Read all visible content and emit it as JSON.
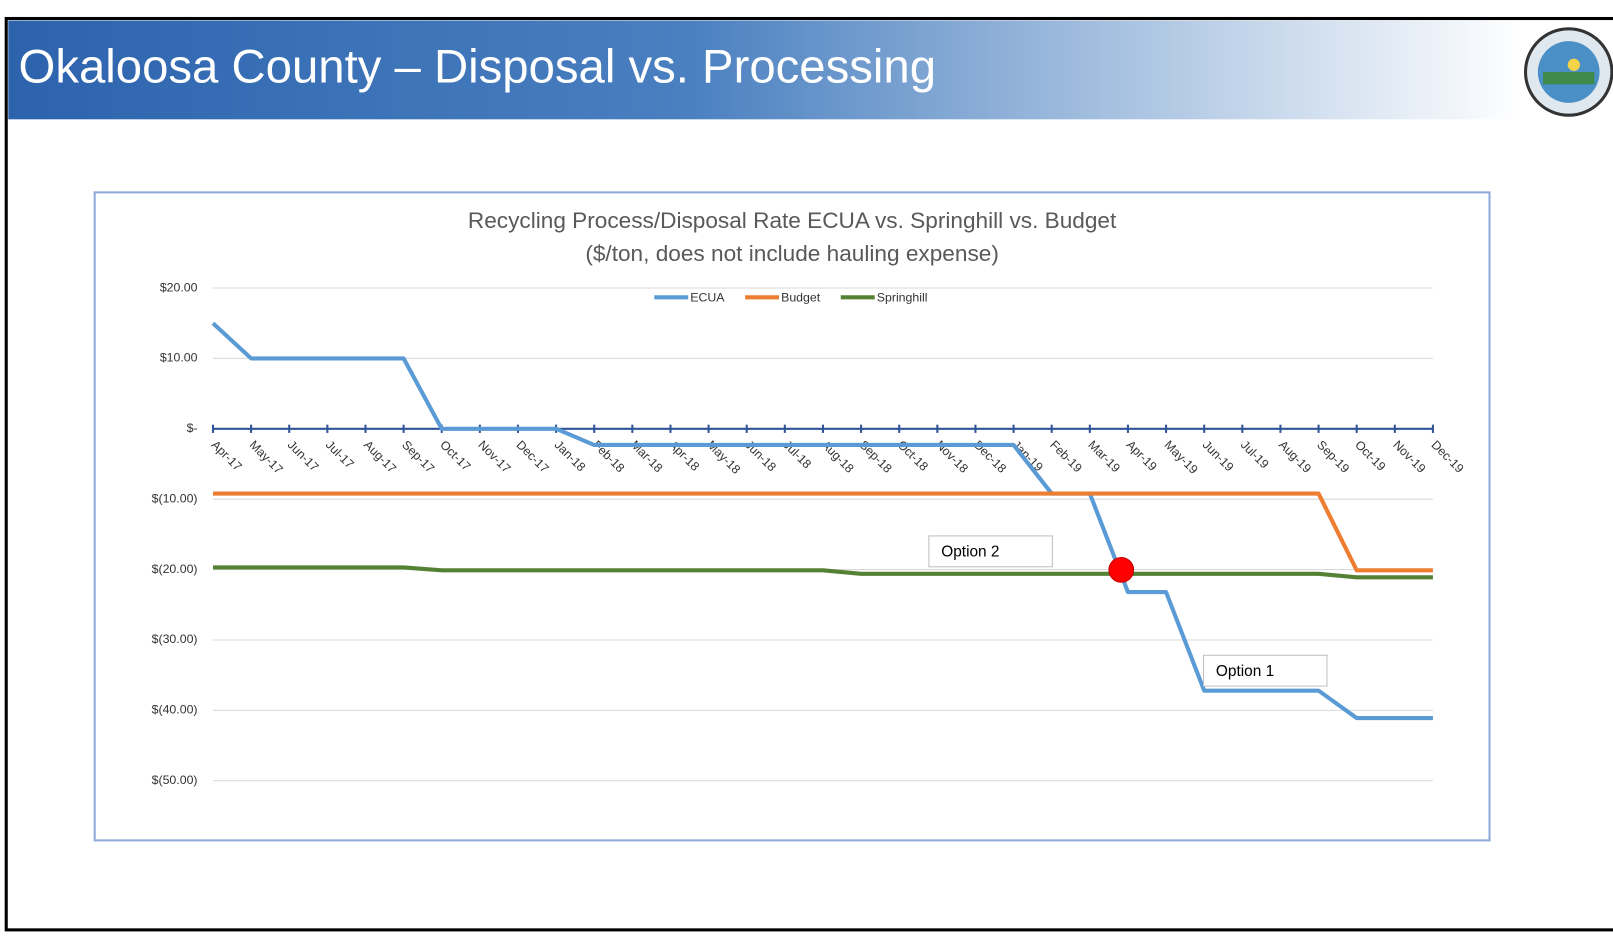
{
  "header": {
    "title": "Okaloosa County – Disposal vs. Processing"
  },
  "chart_data": {
    "type": "line",
    "title": "Recycling Process/Disposal Rate ECUA vs. Springhill vs. Budget",
    "subtitle": "($/ton, does not include hauling expense)",
    "categories": [
      "Apr-17",
      "May-17",
      "Jun-17",
      "Jul-17",
      "Aug-17",
      "Sep-17",
      "Oct-17",
      "Nov-17",
      "Dec-17",
      "Jan-18",
      "Feb-18",
      "Mar-18",
      "Apr-18",
      "May-18",
      "Jun-18",
      "Jul-18",
      "Aug-18",
      "Sep-18",
      "Oct-18",
      "Nov-18",
      "Dec-18",
      "Jan-19",
      "Feb-19",
      "Mar-19",
      "Apr-19",
      "May-19",
      "Jun-19",
      "Jul-19",
      "Aug-19",
      "Sep-19",
      "Oct-19",
      "Nov-19",
      "Dec-19"
    ],
    "series": [
      {
        "name": "ECUA",
        "color": "#5b9bd5",
        "values": [
          15,
          10,
          10,
          10,
          10,
          10,
          0,
          0,
          0,
          0,
          -2.3,
          -2.3,
          -2.3,
          -2.3,
          -2.3,
          -2.3,
          -2.3,
          -2.3,
          -2.3,
          -2.3,
          -2.3,
          -2.3,
          -9.2,
          -9.2,
          -23.2,
          -23.2,
          -37.2,
          -37.2,
          -37.2,
          -37.2,
          -41.1,
          -41.1,
          -41.1
        ]
      },
      {
        "name": "Budget",
        "color": "#ed7d31",
        "values": [
          -9.2,
          -9.2,
          -9.2,
          -9.2,
          -9.2,
          -9.2,
          -9.2,
          -9.2,
          -9.2,
          -9.2,
          -9.2,
          -9.2,
          -9.2,
          -9.2,
          -9.2,
          -9.2,
          -9.2,
          -9.2,
          -9.2,
          -9.2,
          -9.2,
          -9.2,
          -9.2,
          -9.2,
          -9.2,
          -9.2,
          -9.2,
          -9.2,
          -9.2,
          -9.2,
          -20.1,
          -20.1,
          -20.1
        ]
      },
      {
        "name": "Springhill",
        "color": "#548235",
        "values": [
          -19.7,
          -19.7,
          -19.7,
          -19.7,
          -19.7,
          -19.7,
          -20.1,
          -20.1,
          -20.1,
          -20.1,
          -20.1,
          -20.1,
          -20.1,
          -20.1,
          -20.1,
          -20.1,
          -20.1,
          -20.6,
          -20.6,
          -20.6,
          -20.6,
          -20.6,
          -20.6,
          -20.6,
          -20.6,
          -20.6,
          -20.6,
          -20.6,
          -20.6,
          -20.6,
          -21.1,
          -21.1,
          -21.1
        ]
      }
    ],
    "ylim": [
      20,
      -50
    ],
    "yticks": [
      {
        "value": 20,
        "label": "$20.00"
      },
      {
        "value": 10,
        "label": "$10.00"
      },
      {
        "value": 0,
        "label": "$-"
      },
      {
        "value": -10,
        "label": "$(10.00)"
      },
      {
        "value": -20,
        "label": "$(20.00)"
      },
      {
        "value": -30,
        "label": "$(30.00)"
      },
      {
        "value": -40,
        "label": "$(40.00)"
      },
      {
        "value": -50,
        "label": "$(50.00)"
      }
    ],
    "grid": true,
    "legend": "top",
    "annotations": [
      "Option 2",
      "Option 1"
    ]
  }
}
